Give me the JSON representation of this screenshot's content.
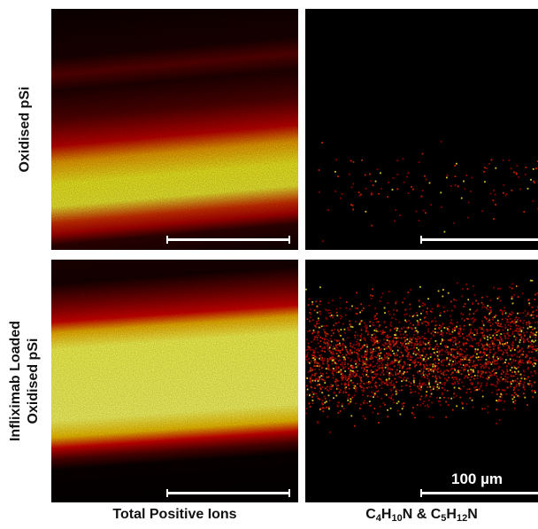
{
  "rows": [
    {
      "label": "Oxidised pSi"
    },
    {
      "label_line1": "Infliximab Loaded",
      "label_line2": "Oxidised pSi"
    }
  ],
  "columns": [
    {
      "label": "Total Positive Ions"
    },
    {
      "label_parts": [
        {
          "text": "C"
        },
        {
          "sub": "4"
        },
        {
          "text": "H"
        },
        {
          "sub": "10"
        },
        {
          "text": "N & C"
        },
        {
          "sub": "5"
        },
        {
          "text": "H"
        },
        {
          "sub": "12"
        },
        {
          "text": "N"
        }
      ]
    }
  ],
  "scale_bar": {
    "label": "100 µm"
  },
  "colors": {
    "background": "#000000",
    "low_intensity": "#8b0000",
    "mid_intensity": "#e60000",
    "high_intensity": "#ffff33",
    "scale_bar": "#ffffff"
  }
}
